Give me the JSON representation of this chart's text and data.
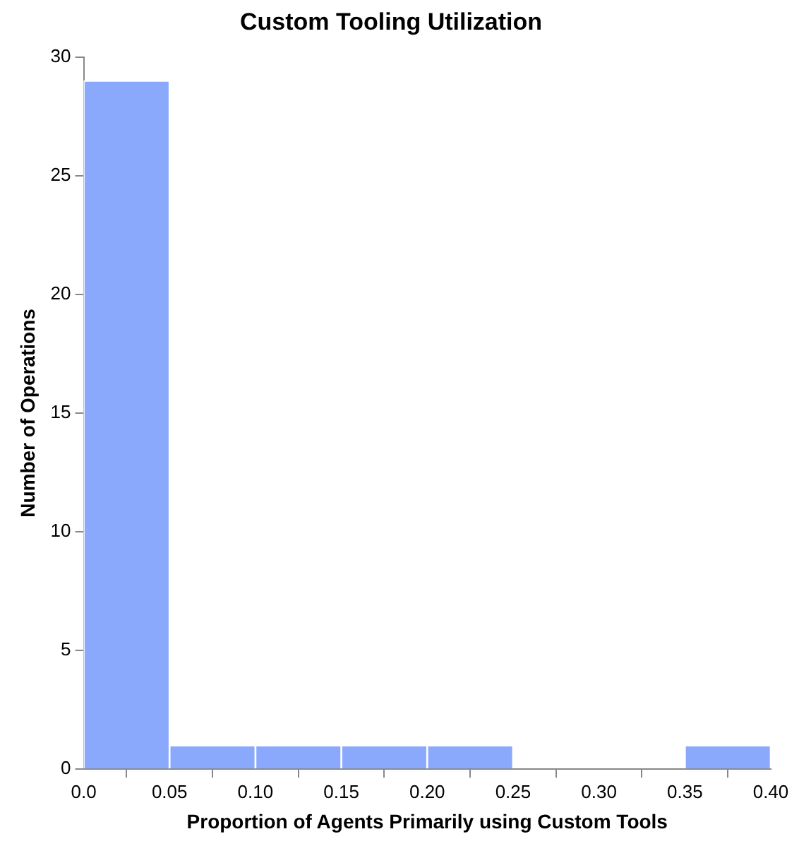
{
  "chart_data": {
    "type": "histogram",
    "title": "Custom Tooling Utilization",
    "xlabel": "Proportion of Agents Primarily using Custom Tools",
    "ylabel": "Number of Operations",
    "bins": [
      0,
      0.05,
      0.1,
      0.15,
      0.2,
      0.25,
      0.3,
      0.35,
      0.4
    ],
    "values": [
      29,
      1,
      1,
      1,
      1,
      0,
      0,
      1
    ],
    "color": "#8aa8fc",
    "xlim": [
      0,
      0.4
    ],
    "xticks": [
      {
        "value": 0,
        "label": "0.0"
      },
      0.05,
      {
        "value": 0.1,
        "label": "0.10"
      },
      0.15,
      {
        "value": 0.2,
        "label": "0.20"
      },
      0.25,
      {
        "value": 0.3,
        "label": "0.30"
      },
      0.35,
      {
        "value": 0.4,
        "label": "0.40"
      }
    ],
    "ylim": [
      0,
      30
    ],
    "yticks": [
      0,
      5,
      10,
      15,
      20,
      25,
      30
    ],
    "grid": false
  }
}
